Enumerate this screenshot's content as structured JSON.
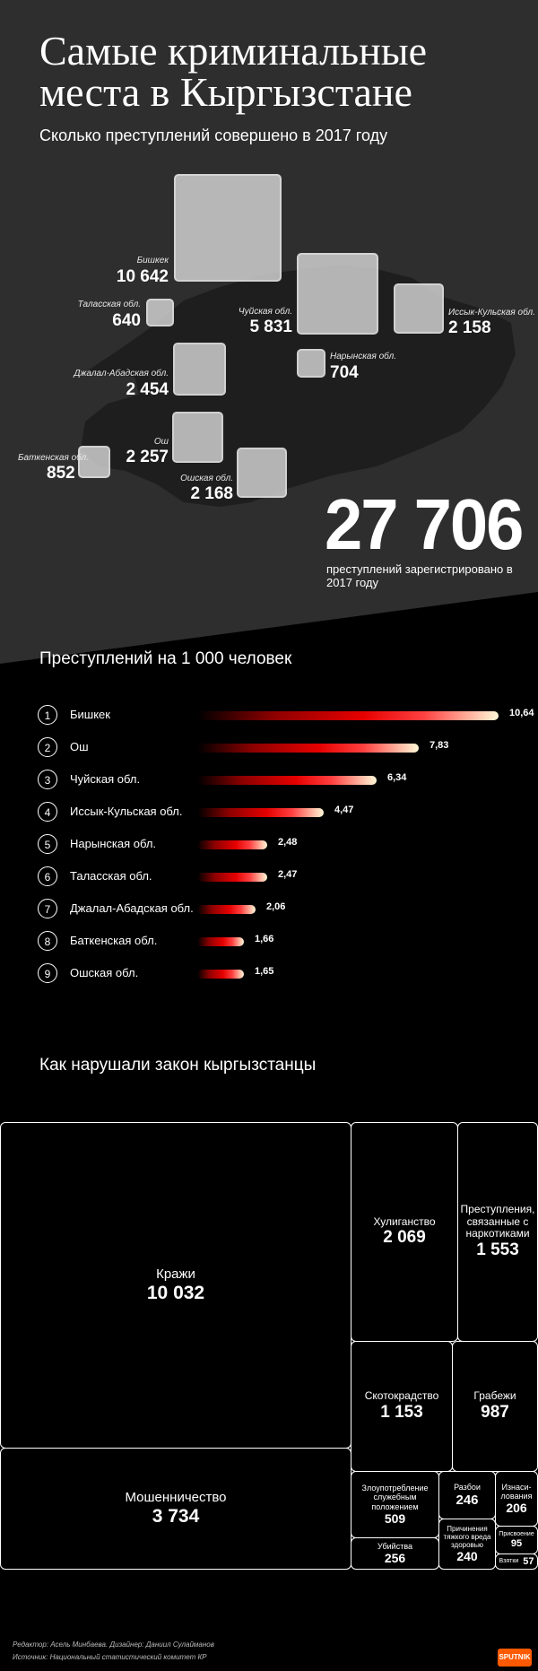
{
  "title": "Самые криминальные места в Кыргызстане",
  "subtitle": "Сколько преступлений совершено в 2017 году",
  "chart_data": [
    {
      "type": "area",
      "title": "Сколько преступлений совершено в 2017 году",
      "categories": [
        "Бишкек",
        "Таласская обл.",
        "Чуйская обл.",
        "Иссык-Кульская обл.",
        "Нарынская обл.",
        "Джалал-Абадская обл.",
        "Ош",
        "Баткенская обл.",
        "Ошская обл."
      ],
      "values": [
        10642,
        640,
        5831,
        2158,
        704,
        2454,
        2257,
        852,
        2168
      ],
      "value_labels": [
        "10 642",
        "640",
        "5 831",
        "2 158",
        "704",
        "2 454",
        "2 257",
        "852",
        "2 168"
      ]
    },
    {
      "type": "bar",
      "title": "Преступлений на 1 000 человек",
      "ranks": [
        "1",
        "2",
        "3",
        "4",
        "5",
        "6",
        "7",
        "8",
        "9"
      ],
      "categories": [
        "Бишкек",
        "Ош",
        "Чуйская обл.",
        "Иссык-Кульская обл.",
        "Нарынская обл.",
        "Таласская обл.",
        "Джалал-Абадская обл.",
        "Баткенская обл.",
        "Ошская обл."
      ],
      "values": [
        10.64,
        7.83,
        6.34,
        4.47,
        2.48,
        2.47,
        2.06,
        1.66,
        1.65
      ],
      "value_labels": [
        "10,64",
        "7,83",
        "6,34",
        "4,47",
        "2,48",
        "2,47",
        "2,06",
        "1,66",
        "1,65"
      ]
    },
    {
      "type": "heatmap",
      "title": "Как нарушали закон кыргызстанцы",
      "categories": [
        "Кражи",
        "Мошенничество",
        "Хулиганство",
        "Преступления, связанные с наркотиками",
        "Скотокрадство",
        "Грабежи",
        "Злоупотребление служебным положением",
        "Разбои",
        "Изнасилования",
        "Убийства",
        "Причинения тяжкого вреда здоровью",
        "Присвоение",
        "Взятки"
      ],
      "values": [
        10032,
        3734,
        2069,
        1553,
        1153,
        987,
        509,
        246,
        206,
        256,
        240,
        95,
        57
      ],
      "value_labels": [
        "10 032",
        "3 734",
        "2 069",
        "1 553",
        "1 153",
        "987",
        "509",
        "246",
        "206",
        "256",
        "240",
        "95",
        "57"
      ]
    }
  ],
  "total": {
    "value": "27 706",
    "caption": "преступлений зарегистрировано в 2017 году"
  },
  "rate_title": "Преступлений на 1 000 человек",
  "treemap_title": "Как нарушали закон кыргызстанцы",
  "treemap_labels": {
    "t0": "Кражи",
    "t1": "Мошенничество",
    "t2": "Хулиганство",
    "t3": "Преступления, связанные с наркотиками",
    "t4": "Скотокрадство",
    "t5": "Грабежи",
    "t6": "Злоупотребление служебным положением",
    "t7": "Разбои",
    "t8": "Изнаси-лования",
    "t9": "Убийства",
    "t10": "Причинения тяжкого вреда здоровью",
    "t11": "Присвоение",
    "t12": "Взятки"
  },
  "footer": {
    "credits": "Редактор: Асель Минбаева. Дизайнер: Даниил Сулайманов",
    "source": "Источник: Национальный статистический комитет КР",
    "logo": "SPUTNIK"
  },
  "colors": {
    "hero_bg": "#2e2e2e",
    "map": "#1e1e1e",
    "bar_end": "#fff8d8",
    "bar_mid": "#e60000",
    "logo": "#ff5a00"
  }
}
